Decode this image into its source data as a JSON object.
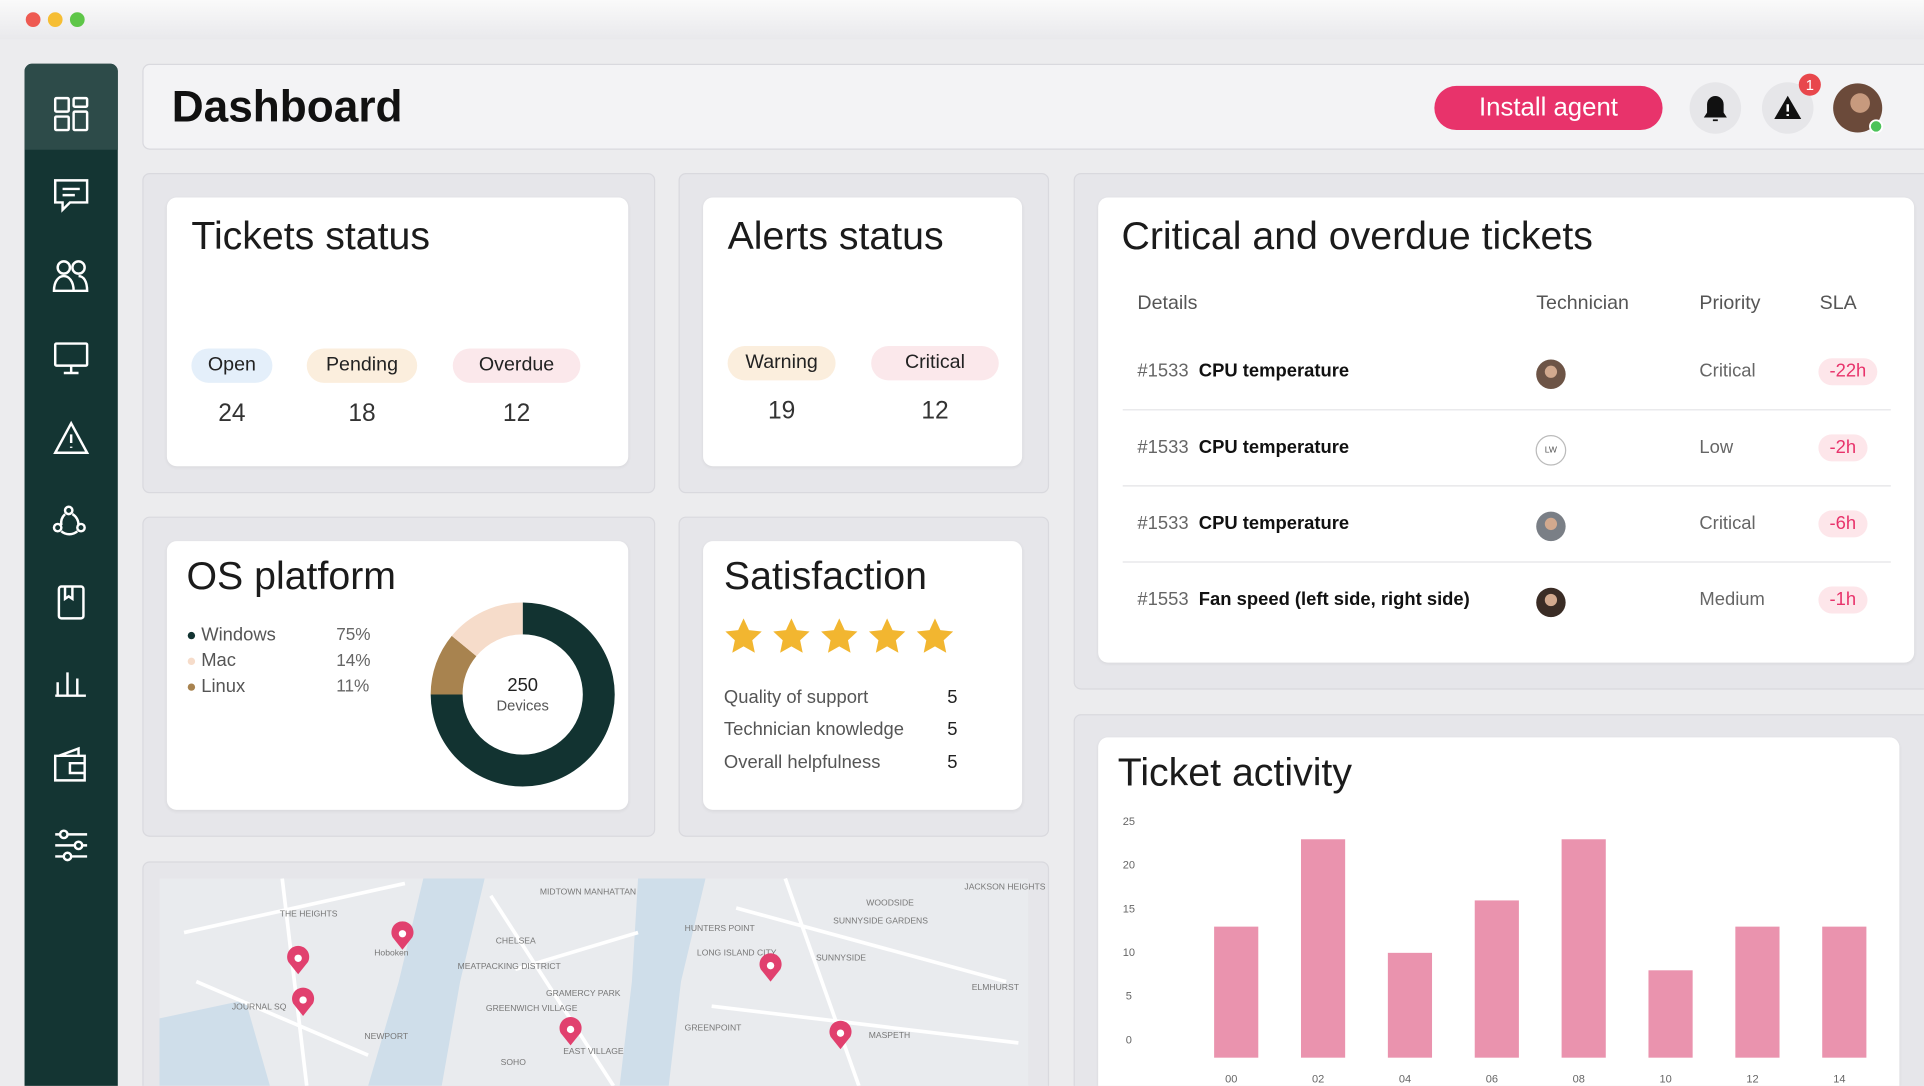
{
  "header": {
    "title": "Dashboard",
    "button": "Install agent",
    "alert_badge": "1"
  },
  "tickets_status": {
    "title": "Tickets status",
    "items": [
      {
        "label": "Open",
        "value": 24
      },
      {
        "label": "Pending",
        "value": 18
      },
      {
        "label": "Overdue",
        "value": 12
      }
    ]
  },
  "alerts_status": {
    "title": "Alerts status",
    "items": [
      {
        "label": "Warning",
        "value": 19
      },
      {
        "label": "Critical",
        "value": 12
      }
    ]
  },
  "satisfaction": {
    "title": "Satisfaction",
    "items": [
      {
        "label": "Quality of support",
        "value": 5
      },
      {
        "label": "Technician knowledge",
        "value": 5
      },
      {
        "label": "Overall helpfulness",
        "value": 5
      }
    ]
  },
  "critical_tickets": {
    "title": "Critical and overdue tickets",
    "columns": [
      "Details",
      "Technician",
      "Priority",
      "SLA"
    ],
    "rows": [
      {
        "id": "#1533",
        "detail": "CPU temperature",
        "priority": "Critical",
        "sla": "-22h"
      },
      {
        "id": "#1533",
        "detail": "CPU temperature",
        "technician": "LW",
        "priority": "Low",
        "sla": "-2h"
      },
      {
        "id": "#1533",
        "detail": "CPU temperature",
        "priority": "Critical",
        "sla": "-6h"
      },
      {
        "id": "#1553",
        "detail": "Fan speed (left side, right side)",
        "priority": "Medium",
        "sla": "-1h"
      }
    ]
  },
  "map": {
    "labels": [
      "THE HEIGHTS",
      "Hoboken",
      "JOURNAL SQ",
      "NEWPORT",
      "MIDTOWN MANHATTAN",
      "CHELSEA",
      "MEATPACKING DISTRICT",
      "GREENWICH VILLAGE",
      "GRAMERCY PARK",
      "EAST VILLAGE",
      "SOHO",
      "HUNTERS POINT",
      "LONG ISLAND CITY",
      "SUNNYSIDE GARDENS",
      "SUNNYSIDE",
      "WOODSIDE",
      "JACKSON HEIGHTS",
      "GREENPOINT",
      "MASPETH",
      "ELMHURST"
    ]
  },
  "chart_data": [
    {
      "type": "pie",
      "title": "OS platform",
      "categories": [
        "Windows",
        "Mac",
        "Linux"
      ],
      "values": [
        75,
        14,
        11
      ],
      "value_labels": [
        "75%",
        "14%",
        "11%"
      ],
      "colors": [
        "#123331",
        "#f6dcca",
        "#a8834f"
      ],
      "center_value": 250,
      "center_label": "Devices"
    },
    {
      "type": "bar",
      "title": "Ticket activity",
      "categories": [
        "00",
        "02",
        "04",
        "06",
        "08",
        "10",
        "12",
        "14"
      ],
      "values": [
        15,
        25,
        12,
        18,
        25,
        10,
        15,
        15
      ],
      "color": "#ea93ae",
      "ylim": [
        0,
        25
      ],
      "yticks": [
        0,
        5,
        10,
        15,
        20,
        25
      ]
    }
  ]
}
